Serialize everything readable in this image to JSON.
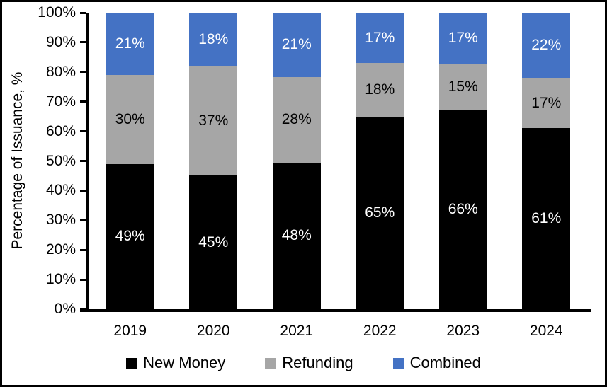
{
  "chart_data": {
    "type": "bar",
    "stacked": true,
    "title": "",
    "ylabel": "Percentage of Issuance, %",
    "xlabel": "",
    "categories": [
      "2019",
      "2020",
      "2021",
      "2022",
      "2023",
      "2024"
    ],
    "series": [
      {
        "name": "New Money",
        "color": "#000000",
        "label_color": "#FFFFFF",
        "values": [
          49,
          45,
          48,
          65,
          66,
          61
        ]
      },
      {
        "name": "Refunding",
        "color": "#A6A6A6",
        "label_color": "#000000",
        "values": [
          30,
          37,
          28,
          18,
          15,
          17
        ]
      },
      {
        "name": "Combined",
        "color": "#4472C4",
        "label_color": "#FFFFFF",
        "values": [
          21,
          18,
          21,
          17,
          17,
          22
        ]
      }
    ],
    "value_suffix": "%",
    "yticks": [
      "0%",
      "10%",
      "20%",
      "30%",
      "40%",
      "50%",
      "60%",
      "70%",
      "80%",
      "90%",
      "100%"
    ],
    "ylim": [
      0,
      100
    ],
    "grid": false,
    "legend_position": "bottom"
  }
}
